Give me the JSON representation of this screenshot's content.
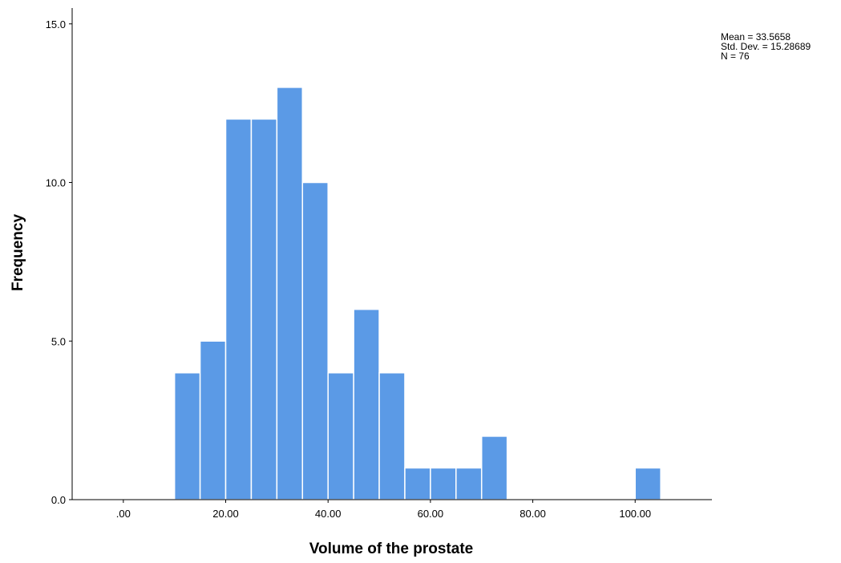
{
  "chart_data": {
    "type": "bar",
    "subtype": "histogram",
    "xlabel": "Volume of the prostate",
    "ylabel": "Frequency",
    "bin_width": 5,
    "bins": [
      {
        "start": 10,
        "end": 15,
        "count": 4
      },
      {
        "start": 15,
        "end": 20,
        "count": 5
      },
      {
        "start": 20,
        "end": 25,
        "count": 12
      },
      {
        "start": 25,
        "end": 30,
        "count": 12
      },
      {
        "start": 30,
        "end": 35,
        "count": 13
      },
      {
        "start": 35,
        "end": 40,
        "count": 10
      },
      {
        "start": 40,
        "end": 45,
        "count": 4
      },
      {
        "start": 45,
        "end": 50,
        "count": 6
      },
      {
        "start": 50,
        "end": 55,
        "count": 4
      },
      {
        "start": 55,
        "end": 60,
        "count": 1
      },
      {
        "start": 60,
        "end": 65,
        "count": 1
      },
      {
        "start": 65,
        "end": 70,
        "count": 1
      },
      {
        "start": 70,
        "end": 75,
        "count": 2
      },
      {
        "start": 100,
        "end": 105,
        "count": 1
      }
    ],
    "xlim": [
      -10,
      115
    ],
    "ylim": [
      0,
      15.5
    ],
    "x_ticks": [
      {
        "value": 0,
        "label": ".00"
      },
      {
        "value": 20,
        "label": "20.00"
      },
      {
        "value": 40,
        "label": "40.00"
      },
      {
        "value": 60,
        "label": "60.00"
      },
      {
        "value": 80,
        "label": "80.00"
      },
      {
        "value": 100,
        "label": "100.00"
      }
    ],
    "y_ticks": [
      {
        "value": 0,
        "label": "0.0"
      },
      {
        "value": 5,
        "label": "5.0"
      },
      {
        "value": 10,
        "label": "10.0"
      },
      {
        "value": 15,
        "label": "15.0"
      }
    ],
    "stats": [
      "Mean = 33.5658",
      "Std. Dev. = 15.28689",
      "N = 76"
    ],
    "grid": false,
    "legend": "none",
    "colors": {
      "bar_fill": "#5b9ae6",
      "bar_edge": "#ffffff",
      "axis": "#000000"
    }
  }
}
